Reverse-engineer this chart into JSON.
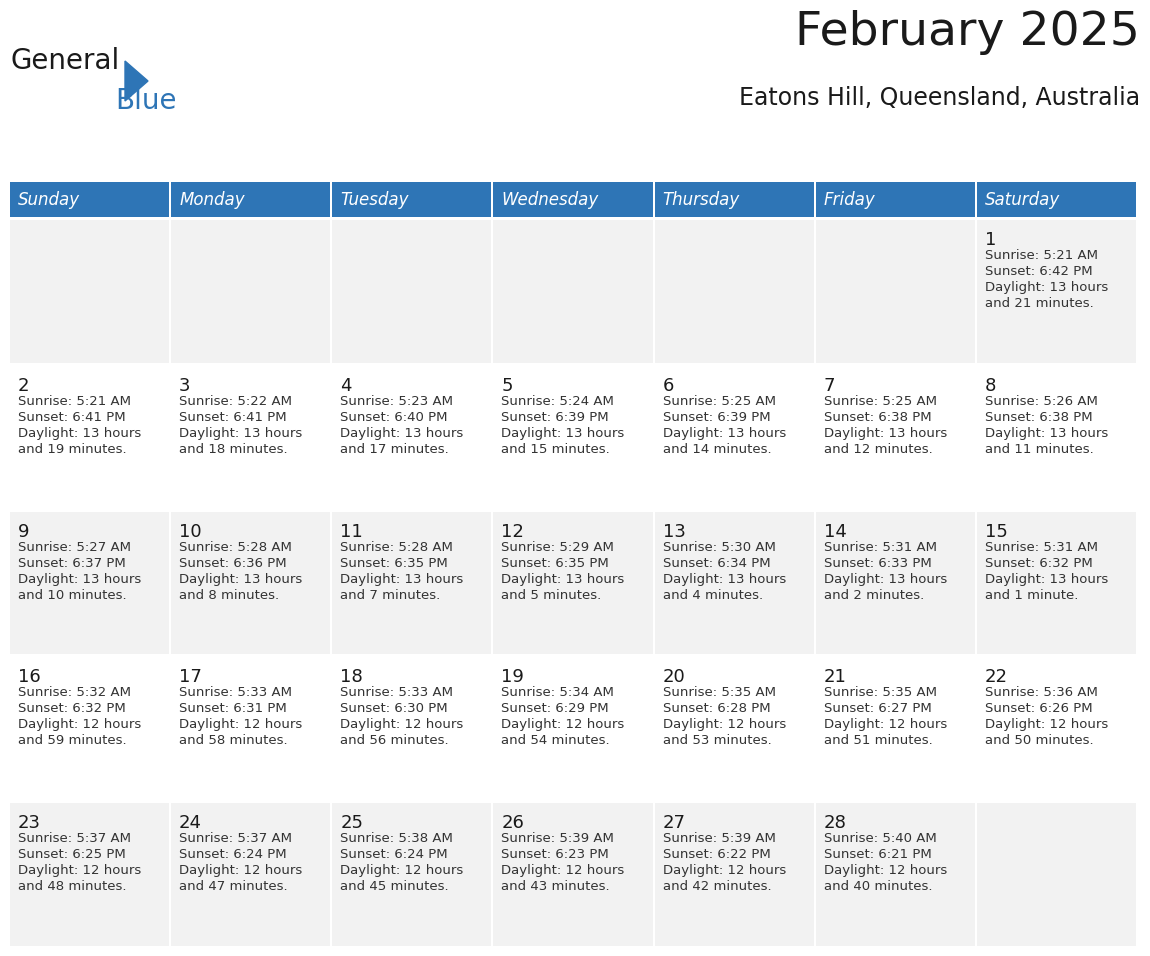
{
  "title": "February 2025",
  "subtitle": "Eatons Hill, Queensland, Australia",
  "header_bg": "#2E75B6",
  "header_text_color": "#FFFFFF",
  "cell_bg_odd": "#F2F2F2",
  "cell_bg_even": "#FFFFFF",
  "separator_color": "#2E75B6",
  "text_color": "#333333",
  "day_num_color": "#1A1A1A",
  "days_of_week": [
    "Sunday",
    "Monday",
    "Tuesday",
    "Wednesday",
    "Thursday",
    "Friday",
    "Saturday"
  ],
  "calendar_data": [
    [
      null,
      null,
      null,
      null,
      null,
      null,
      {
        "day": "1",
        "sunrise": "5:21 AM",
        "sunset": "6:42 PM",
        "daylight_line1": "13 hours",
        "daylight_line2": "and 21 minutes."
      }
    ],
    [
      {
        "day": "2",
        "sunrise": "5:21 AM",
        "sunset": "6:41 PM",
        "daylight_line1": "13 hours",
        "daylight_line2": "and 19 minutes."
      },
      {
        "day": "3",
        "sunrise": "5:22 AM",
        "sunset": "6:41 PM",
        "daylight_line1": "13 hours",
        "daylight_line2": "and 18 minutes."
      },
      {
        "day": "4",
        "sunrise": "5:23 AM",
        "sunset": "6:40 PM",
        "daylight_line1": "13 hours",
        "daylight_line2": "and 17 minutes."
      },
      {
        "day": "5",
        "sunrise": "5:24 AM",
        "sunset": "6:39 PM",
        "daylight_line1": "13 hours",
        "daylight_line2": "and 15 minutes."
      },
      {
        "day": "6",
        "sunrise": "5:25 AM",
        "sunset": "6:39 PM",
        "daylight_line1": "13 hours",
        "daylight_line2": "and 14 minutes."
      },
      {
        "day": "7",
        "sunrise": "5:25 AM",
        "sunset": "6:38 PM",
        "daylight_line1": "13 hours",
        "daylight_line2": "and 12 minutes."
      },
      {
        "day": "8",
        "sunrise": "5:26 AM",
        "sunset": "6:38 PM",
        "daylight_line1": "13 hours",
        "daylight_line2": "and 11 minutes."
      }
    ],
    [
      {
        "day": "9",
        "sunrise": "5:27 AM",
        "sunset": "6:37 PM",
        "daylight_line1": "13 hours",
        "daylight_line2": "and 10 minutes."
      },
      {
        "day": "10",
        "sunrise": "5:28 AM",
        "sunset": "6:36 PM",
        "daylight_line1": "13 hours",
        "daylight_line2": "and 8 minutes."
      },
      {
        "day": "11",
        "sunrise": "5:28 AM",
        "sunset": "6:35 PM",
        "daylight_line1": "13 hours",
        "daylight_line2": "and 7 minutes."
      },
      {
        "day": "12",
        "sunrise": "5:29 AM",
        "sunset": "6:35 PM",
        "daylight_line1": "13 hours",
        "daylight_line2": "and 5 minutes."
      },
      {
        "day": "13",
        "sunrise": "5:30 AM",
        "sunset": "6:34 PM",
        "daylight_line1": "13 hours",
        "daylight_line2": "and 4 minutes."
      },
      {
        "day": "14",
        "sunrise": "5:31 AM",
        "sunset": "6:33 PM",
        "daylight_line1": "13 hours",
        "daylight_line2": "and 2 minutes."
      },
      {
        "day": "15",
        "sunrise": "5:31 AM",
        "sunset": "6:32 PM",
        "daylight_line1": "13 hours",
        "daylight_line2": "and 1 minute."
      }
    ],
    [
      {
        "day": "16",
        "sunrise": "5:32 AM",
        "sunset": "6:32 PM",
        "daylight_line1": "12 hours",
        "daylight_line2": "and 59 minutes."
      },
      {
        "day": "17",
        "sunrise": "5:33 AM",
        "sunset": "6:31 PM",
        "daylight_line1": "12 hours",
        "daylight_line2": "and 58 minutes."
      },
      {
        "day": "18",
        "sunrise": "5:33 AM",
        "sunset": "6:30 PM",
        "daylight_line1": "12 hours",
        "daylight_line2": "and 56 minutes."
      },
      {
        "day": "19",
        "sunrise": "5:34 AM",
        "sunset": "6:29 PM",
        "daylight_line1": "12 hours",
        "daylight_line2": "and 54 minutes."
      },
      {
        "day": "20",
        "sunrise": "5:35 AM",
        "sunset": "6:28 PM",
        "daylight_line1": "12 hours",
        "daylight_line2": "and 53 minutes."
      },
      {
        "day": "21",
        "sunrise": "5:35 AM",
        "sunset": "6:27 PM",
        "daylight_line1": "12 hours",
        "daylight_line2": "and 51 minutes."
      },
      {
        "day": "22",
        "sunrise": "5:36 AM",
        "sunset": "6:26 PM",
        "daylight_line1": "12 hours",
        "daylight_line2": "and 50 minutes."
      }
    ],
    [
      {
        "day": "23",
        "sunrise": "5:37 AM",
        "sunset": "6:25 PM",
        "daylight_line1": "12 hours",
        "daylight_line2": "and 48 minutes."
      },
      {
        "day": "24",
        "sunrise": "5:37 AM",
        "sunset": "6:24 PM",
        "daylight_line1": "12 hours",
        "daylight_line2": "and 47 minutes."
      },
      {
        "day": "25",
        "sunrise": "5:38 AM",
        "sunset": "6:24 PM",
        "daylight_line1": "12 hours",
        "daylight_line2": "and 45 minutes."
      },
      {
        "day": "26",
        "sunrise": "5:39 AM",
        "sunset": "6:23 PM",
        "daylight_line1": "12 hours",
        "daylight_line2": "and 43 minutes."
      },
      {
        "day": "27",
        "sunrise": "5:39 AM",
        "sunset": "6:22 PM",
        "daylight_line1": "12 hours",
        "daylight_line2": "and 42 minutes."
      },
      {
        "day": "28",
        "sunrise": "5:40 AM",
        "sunset": "6:21 PM",
        "daylight_line1": "12 hours",
        "daylight_line2": "and 40 minutes."
      },
      null
    ]
  ],
  "logo_text1": "General",
  "logo_text2": "Blue",
  "logo_color1": "#1A1A1A",
  "logo_color2": "#2E75B6",
  "triangle_color": "#2E75B6"
}
